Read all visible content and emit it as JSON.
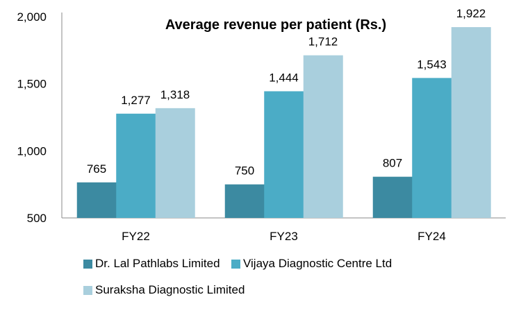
{
  "chart_data": {
    "type": "bar",
    "title": "Average revenue per patient (Rs.)",
    "xlabel": "",
    "ylabel": "",
    "categories": [
      "FY22",
      "FY23",
      "FY24"
    ],
    "series": [
      {
        "name": "Dr. Lal Pathlabs Limited",
        "color": "#3c8aa1",
        "values": [
          765,
          750,
          807
        ],
        "labels": [
          "765",
          "750",
          "807"
        ]
      },
      {
        "name": "Vijaya Diagnostic Centre Ltd",
        "color": "#4bacc6",
        "values": [
          1277,
          1444,
          1543
        ],
        "labels": [
          "1,277",
          "1,444",
          "1,543"
        ]
      },
      {
        "name": "Suraksha Diagnostic Limited",
        "color": "#a9cfdd",
        "values": [
          1318,
          1712,
          1922
        ],
        "labels": [
          "1,318",
          "1,712",
          "1,922"
        ]
      }
    ],
    "ylim": [
      500,
      2000
    ],
    "yticks": [
      500,
      1000,
      1500,
      2000
    ],
    "ytick_labels": [
      "500",
      "1,000",
      "1,500",
      "2,000"
    ],
    "grid": false,
    "legend_position": "bottom"
  }
}
